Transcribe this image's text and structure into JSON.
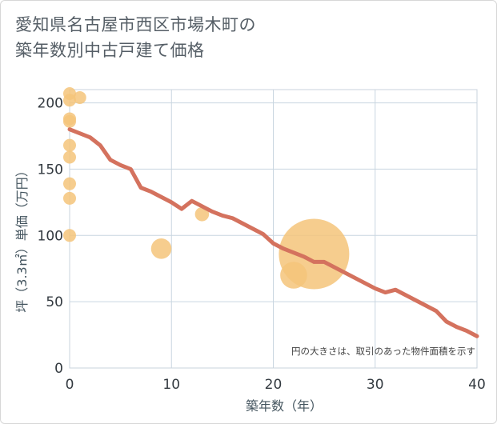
{
  "title_line1": "愛知県名古屋市西区市場木町の",
  "title_line2": "築年数別中古戸建て価格",
  "chart_data": {
    "type": "scatter",
    "xlabel": "築年数（年）",
    "ylabel": "坪（3.3㎡）単価（万円）",
    "xlim": [
      0,
      40
    ],
    "ylim": [
      0,
      210
    ],
    "xticks": [
      0,
      10,
      20,
      30,
      40
    ],
    "yticks": [
      0,
      50,
      100,
      150,
      200
    ],
    "grid": true,
    "note": "円の大きさは、取引のあった物件面積を示す",
    "colors": {
      "bubble": "#f5c47a",
      "trend": "#d4725e",
      "grid": "#c9d6e0",
      "plot_border": "#c9d3dc"
    },
    "points": [
      {
        "x": 0,
        "y": 207,
        "size": 1
      },
      {
        "x": 0,
        "y": 202,
        "size": 1
      },
      {
        "x": 1,
        "y": 204,
        "size": 1
      },
      {
        "x": 0,
        "y": 188,
        "size": 1
      },
      {
        "x": 0,
        "y": 186,
        "size": 1
      },
      {
        "x": 0,
        "y": 168,
        "size": 1
      },
      {
        "x": 0,
        "y": 159,
        "size": 1
      },
      {
        "x": 0,
        "y": 139,
        "size": 1
      },
      {
        "x": 0,
        "y": 128,
        "size": 1
      },
      {
        "x": 0,
        "y": 100,
        "size": 1
      },
      {
        "x": 9,
        "y": 90,
        "size": 1.6
      },
      {
        "x": 13,
        "y": 116,
        "size": 1.1
      },
      {
        "x": 22,
        "y": 70,
        "size": 2.1
      },
      {
        "x": 24,
        "y": 86,
        "size": 5.5
      }
    ],
    "trend": {
      "x": [
        0,
        1,
        2,
        3,
        4,
        5,
        6,
        7,
        8,
        9,
        10,
        11,
        12,
        13,
        14,
        15,
        16,
        17,
        18,
        19,
        20,
        21,
        22,
        23,
        24,
        25,
        26,
        27,
        28,
        29,
        30,
        31,
        32,
        33,
        34,
        35,
        36,
        37,
        38,
        39,
        40
      ],
      "y": [
        180,
        177,
        174,
        168,
        157,
        153,
        150,
        136,
        133,
        129,
        125,
        120,
        126,
        122,
        118,
        115,
        113,
        109,
        105,
        101,
        94,
        90,
        87,
        84,
        80,
        80,
        76,
        72,
        68,
        64,
        60,
        57,
        59,
        55,
        51,
        47,
        43,
        35,
        31,
        28,
        24
      ]
    }
  }
}
